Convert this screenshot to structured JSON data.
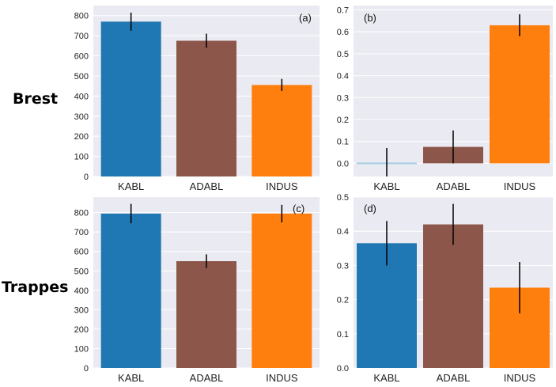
{
  "row_labels": [
    "Brest",
    "Trappes"
  ],
  "colors": {
    "KABL": "#1f77b4",
    "ADABL": "#8c564b",
    "INDUS": "#ff7f0e",
    "KABL_b": "#a6cee3",
    "panel_bg": "#eaeaf2",
    "grid": "#ffffff",
    "errorbar": "#000000"
  },
  "chart_data": [
    {
      "type": "bar",
      "panel": "(a)",
      "row": "Brest",
      "categories": [
        "KABL",
        "ADABL",
        "INDUS"
      ],
      "values": [
        770,
        675,
        455
      ],
      "errors": [
        45,
        35,
        30
      ],
      "ylim": [
        0,
        850
      ],
      "yticks": [
        0,
        100,
        200,
        300,
        400,
        500,
        600,
        700,
        800
      ],
      "ytick_labels": [
        "0",
        "100",
        "200",
        "300",
        "400",
        "500",
        "600",
        "700",
        "800"
      ],
      "grid": true
    },
    {
      "type": "bar",
      "panel": "(b)",
      "row": "Brest",
      "categories": [
        "KABL",
        "ADABL",
        "INDUS"
      ],
      "values": [
        0.005,
        0.075,
        0.63
      ],
      "errors": [
        0.065,
        0.075,
        0.05
      ],
      "ylim": [
        -0.06,
        0.72
      ],
      "yticks": [
        0,
        0.1,
        0.2,
        0.3,
        0.4,
        0.5,
        0.6,
        0.7
      ],
      "ytick_labels": [
        "0.0",
        "0.1",
        "0.2",
        "0.3",
        "0.4",
        "0.5",
        "0.6",
        "0.7"
      ],
      "grid": true
    },
    {
      "type": "bar",
      "panel": "(c)",
      "row": "Trappes",
      "categories": [
        "KABL",
        "ADABL",
        "INDUS"
      ],
      "values": [
        795,
        550,
        795
      ],
      "errors": [
        50,
        35,
        45
      ],
      "ylim": [
        0,
        880
      ],
      "yticks": [
        0,
        100,
        200,
        300,
        400,
        500,
        600,
        700,
        800
      ],
      "ytick_labels": [
        "0",
        "100",
        "200",
        "300",
        "400",
        "500",
        "600",
        "700",
        "800"
      ],
      "grid": true
    },
    {
      "type": "bar",
      "panel": "(d)",
      "row": "Trappes",
      "categories": [
        "KABL",
        "ADABL",
        "INDUS"
      ],
      "values": [
        0.365,
        0.42,
        0.235
      ],
      "errors": [
        0.065,
        0.06,
        0.075
      ],
      "ylim": [
        0,
        0.5
      ],
      "yticks": [
        0,
        0.1,
        0.2,
        0.3,
        0.4,
        0.5
      ],
      "ytick_labels": [
        "0.0",
        "0.1",
        "0.2",
        "0.3",
        "0.4",
        "0.5"
      ],
      "grid": true
    }
  ]
}
